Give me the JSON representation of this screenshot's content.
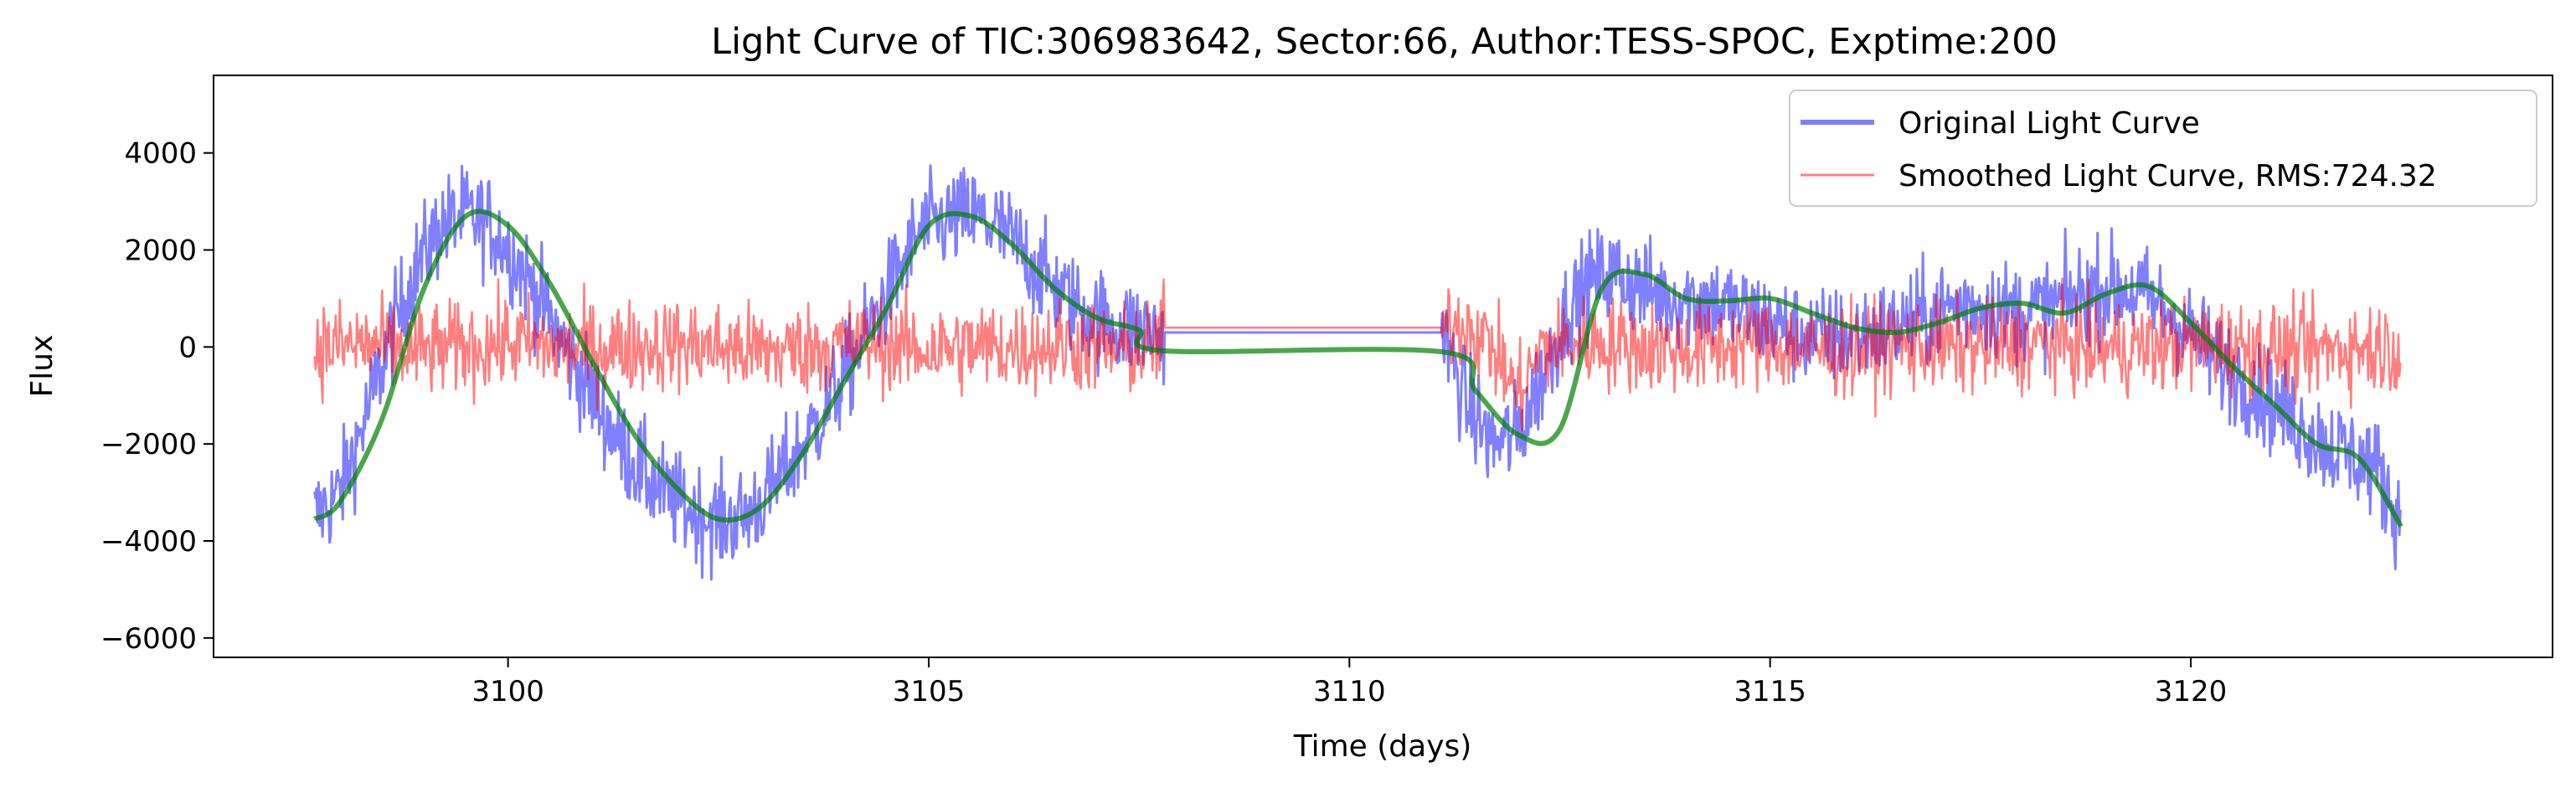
{
  "chart_data": {
    "type": "line",
    "title": "Light Curve of TIC:306983642, Sector:66, Author:TESS-SPOC, Exptime:200",
    "xlabel": "Time (days)",
    "ylabel": "Flux",
    "xlim": [
      3096.5,
      3124.3
    ],
    "ylim": [
      -6400,
      5600
    ],
    "xticks": [
      3100,
      3105,
      3110,
      3115,
      3120
    ],
    "yticks": [
      -6000,
      -4000,
      -2000,
      0,
      2000,
      4000
    ],
    "x_tick_labels": [
      "3100",
      "3105",
      "3110",
      "3115",
      "3120"
    ],
    "y_tick_labels": [
      "−6000",
      "−4000",
      "−2000",
      "0",
      "2000",
      "4000"
    ],
    "grid": false,
    "legend_position": "top-right",
    "colors": {
      "original": "#0000ff",
      "smoothed": "#ff0000",
      "trend": "#008000"
    },
    "series": [
      {
        "name": "Original Light Curve",
        "style": "noisy line, alpha 0.5, linewidth 3",
        "x": [
          3097.7,
          3098.0,
          3098.3,
          3098.6,
          3098.9,
          3099.2,
          3099.5,
          3099.8,
          3100.1,
          3100.4,
          3100.7,
          3101.0,
          3101.3,
          3101.6,
          3101.9,
          3102.2,
          3102.5,
          3102.8,
          3103.1,
          3103.4,
          3103.7,
          3104.0,
          3104.3,
          3104.6,
          3104.9,
          3105.2,
          3105.5,
          3105.8,
          3106.1,
          3106.4,
          3106.7,
          3107.0,
          3107.3,
          3107.7,
          3107.8,
          3111.1,
          3111.2,
          3111.4,
          3111.7,
          3112.0,
          3112.3,
          3112.6,
          3112.9,
          3113.2,
          3113.5,
          3113.8,
          3114.1,
          3114.4,
          3114.7,
          3115.0,
          3115.3,
          3115.6,
          3115.9,
          3116.2,
          3116.5,
          3116.8,
          3117.1,
          3117.4,
          3117.7,
          3118.0,
          3118.3,
          3118.6,
          3118.9,
          3119.2,
          3119.5,
          3119.8,
          3120.1,
          3120.4,
          3120.7,
          3121.0,
          3121.3,
          3121.6,
          3121.9,
          3122.2,
          3122.5
        ],
        "y": [
          -3500,
          -3000,
          -1500,
          200,
          1600,
          2500,
          2700,
          2500,
          1800,
          900,
          -100,
          -1000,
          -1900,
          -2600,
          -3100,
          -3400,
          -3600,
          -3500,
          -3000,
          -2300,
          -1500,
          -600,
          400,
          1400,
          2400,
          2600,
          2700,
          2500,
          2000,
          1400,
          900,
          600,
          400,
          300,
          300,
          300,
          -200,
          -1200,
          -2000,
          -1800,
          -600,
          800,
          1400,
          1500,
          1200,
          1000,
          1000,
          900,
          700,
          500,
          300,
          200,
          200,
          300,
          400,
          600,
          800,
          900,
          800,
          700,
          800,
          1000,
          1200,
          1200,
          1000,
          600,
          100,
          -400,
          -800,
          -1200,
          -1600,
          -2000,
          -2200,
          -2500,
          -3600
        ]
      },
      {
        "name": "Smoothed Light Curve, RMS:724.32",
        "style": "noisy line, alpha 0.5, linewidth 1.5",
        "x": [
          3097.7,
          3098.3,
          3098.9,
          3099.5,
          3100.1,
          3100.7,
          3101.3,
          3101.9,
          3102.5,
          3103.1,
          3103.7,
          3104.3,
          3104.9,
          3105.5,
          3106.1,
          3106.7,
          3107.3,
          3107.7,
          3107.8,
          3111.1,
          3111.4,
          3111.7,
          3112.0,
          3112.3,
          3112.9,
          3113.5,
          3114.1,
          3114.7,
          3115.3,
          3115.9,
          3116.5,
          3117.1,
          3117.7,
          3118.3,
          3118.9,
          3119.5,
          3120.1,
          3120.7,
          3121.3,
          3121.9,
          3122.5
        ],
        "y": [
          0,
          50,
          -100,
          0,
          100,
          -50,
          0,
          50,
          0,
          -100,
          0,
          100,
          -50,
          0,
          0,
          50,
          -100,
          0,
          400,
          400,
          500,
          0,
          -1000,
          0,
          100,
          0,
          -50,
          100,
          0,
          -100,
          50,
          0,
          0,
          100,
          -50,
          0,
          50,
          0,
          -100,
          0,
          0
        ]
      },
      {
        "name": "",
        "style": "smooth trend, linewidth 4",
        "x": [
          3097.7,
          3098.0,
          3098.5,
          3099.0,
          3099.5,
          3100.0,
          3100.5,
          3101.0,
          3101.5,
          3102.0,
          3102.5,
          3103.0,
          3103.5,
          3104.0,
          3104.5,
          3105.0,
          3105.5,
          3106.0,
          3106.5,
          3107.0,
          3107.5,
          3107.8,
          3111.1,
          3111.5,
          3112.0,
          3112.5,
          3113.0,
          3113.5,
          3114.0,
          3114.5,
          3115.0,
          3115.5,
          3116.0,
          3116.5,
          3117.0,
          3117.5,
          3118.0,
          3118.5,
          3119.0,
          3119.5,
          3120.0,
          3120.5,
          3121.0,
          3121.5,
          3122.0,
          3122.5
        ],
        "y": [
          -3550,
          -3200,
          -1500,
          1200,
          2700,
          2500,
          1300,
          -300,
          -1800,
          -2900,
          -3550,
          -3300,
          -2200,
          -700,
          800,
          2500,
          2700,
          2100,
          1200,
          600,
          350,
          -80,
          -100,
          -900,
          -1800,
          -1700,
          1200,
          1500,
          1000,
          950,
          1000,
          700,
          400,
          300,
          500,
          800,
          900,
          700,
          1100,
          1250,
          500,
          -400,
          -1200,
          -2000,
          -2300,
          -3700
        ]
      }
    ]
  }
}
